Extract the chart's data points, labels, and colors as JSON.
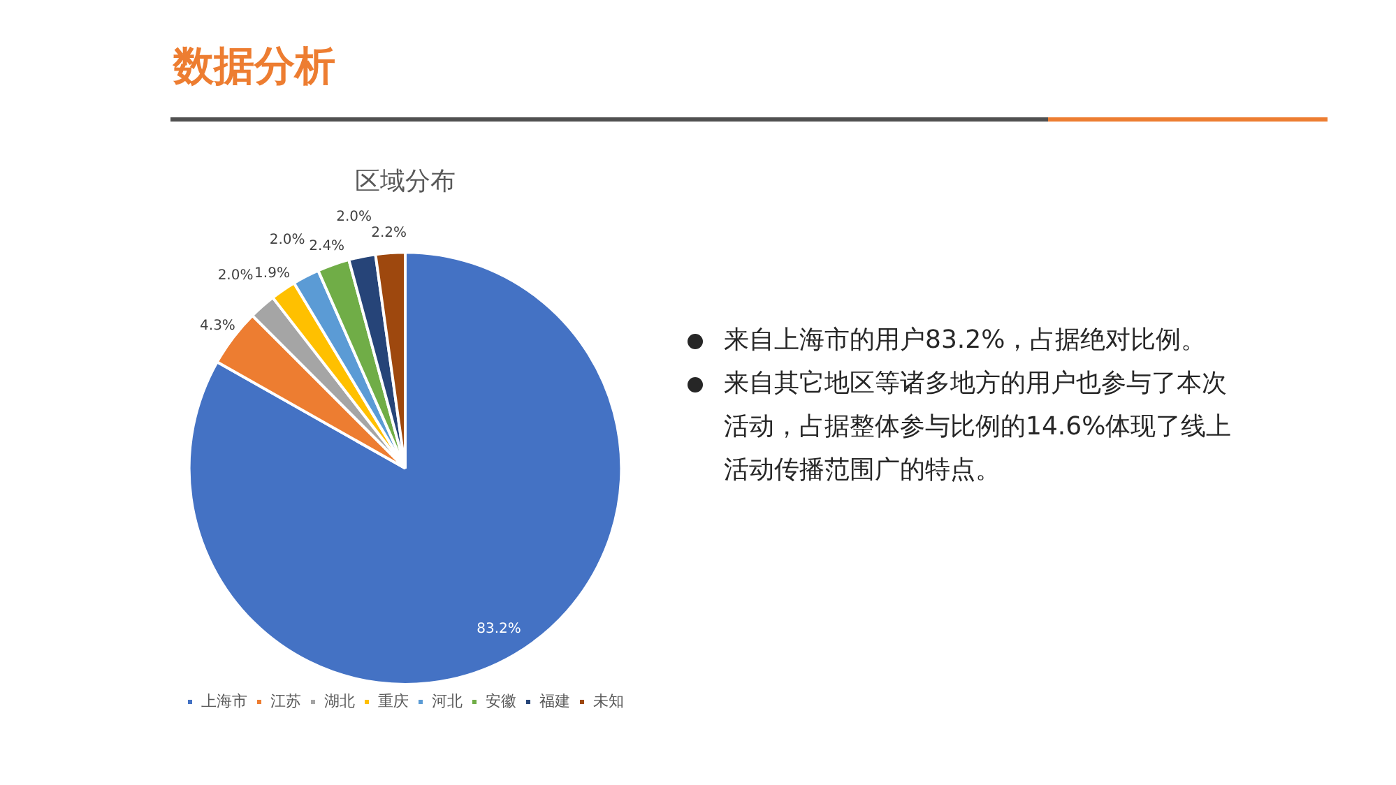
{
  "chart_data": {
    "type": "pie",
    "title": "区域分布",
    "categories": [
      "上海市",
      "江苏",
      "湖北",
      "重庆",
      "河北",
      "安徽",
      "福建",
      "未知"
    ],
    "values": [
      83.2,
      4.3,
      2.0,
      1.9,
      2.0,
      2.4,
      2.0,
      2.2
    ],
    "value_labels": [
      "83.2%",
      "4.3%",
      "2.0%",
      "1.9%",
      "2.0%",
      "2.4%",
      "2.0%",
      "2.2%"
    ],
    "colors": [
      "#4472c4",
      "#ed7d31",
      "#a5a5a5",
      "#ffc000",
      "#5b9bd5",
      "#70ad47",
      "#264478",
      "#9e480e"
    ],
    "legend": "bottom",
    "annotations": [
      "数据分析",
      "来自上海市的用户83.2%，占据绝对比例。",
      "来自其它地区等诸多地方的用户也参与了本次活动，占据整体参与比例的14.6%体现了线上活动传播范围广的特点。"
    ]
  }
}
